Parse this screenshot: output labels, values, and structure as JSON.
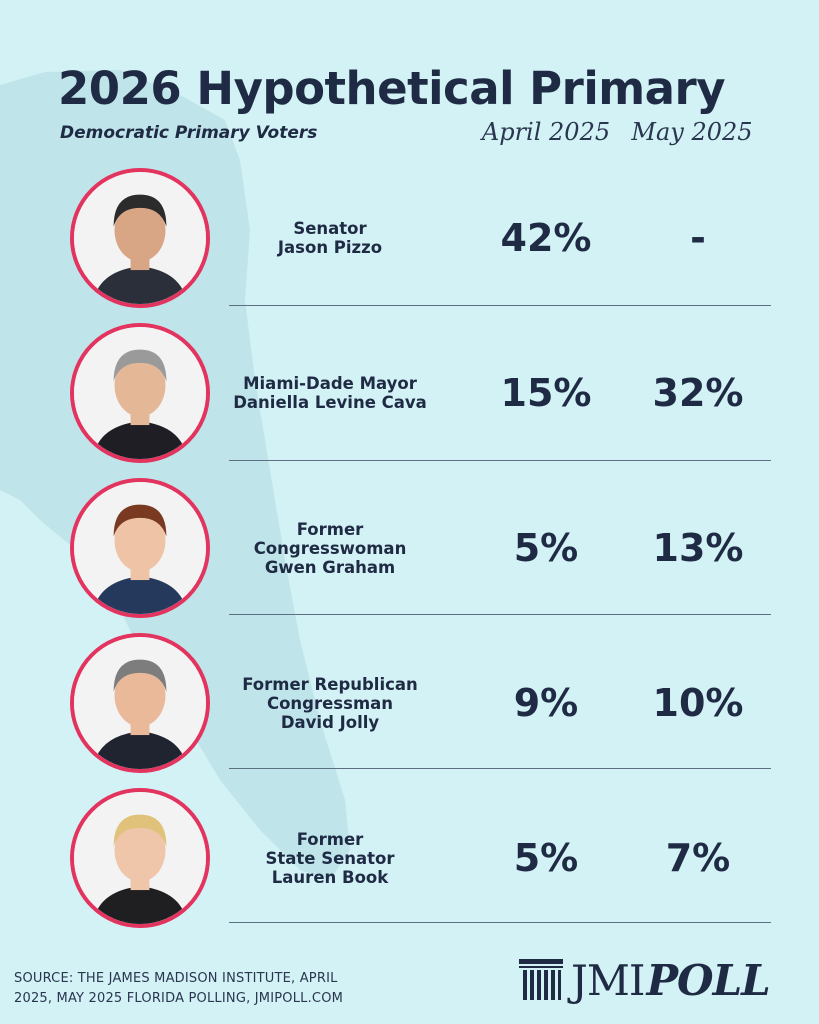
{
  "title": "2026 Hypothetical Primary",
  "subtitle": "Democratic Primary Voters",
  "columns": [
    "April 2025",
    "May 2025"
  ],
  "candidates": [
    {
      "name_lines": [
        "Senator",
        "Jason Pizzo"
      ],
      "april": "42%",
      "may": "-"
    },
    {
      "name_lines": [
        "Miami-Dade Mayor",
        "Daniella Levine Cava"
      ],
      "april": "15%",
      "may": "32%"
    },
    {
      "name_lines": [
        "Former",
        "Congresswoman",
        "Gwen Graham"
      ],
      "april": "5%",
      "may": "13%"
    },
    {
      "name_lines": [
        "Former Republican",
        "Congressman",
        "David Jolly"
      ],
      "april": "9%",
      "may": "10%"
    },
    {
      "name_lines": [
        "Former",
        "State Senator",
        "Lauren Book"
      ],
      "april": "5%",
      "may": "7%"
    }
  ],
  "source_lines": [
    "SOURCE: THE JAMES MADISON INSTITUTE, APRIL",
    "2025, MAY 2025 FLORIDA POLLING, JMIPOLL.COM"
  ],
  "logo": {
    "part1": "JMI",
    "part2": "POLL"
  },
  "icons": {
    "logo_mark": "columns-icon",
    "portrait": "person-portrait-icon"
  },
  "colors": {
    "background": "#d3f2f5",
    "map": "#bfe5ea",
    "text": "#1f2a44",
    "accent_ring": "#e3335f",
    "divider": "#5d6f82"
  },
  "chart_data": {
    "type": "table",
    "title": "2026 Hypothetical Primary",
    "subtitle": "Democratic Primary Voters",
    "series": [
      {
        "name": "April 2025",
        "values": [
          42,
          15,
          5,
          9,
          5
        ]
      },
      {
        "name": "May 2025",
        "values": [
          null,
          32,
          13,
          10,
          7
        ]
      }
    ],
    "categories": [
      "Senator Jason Pizzo",
      "Miami-Dade Mayor Daniella Levine Cava",
      "Former Congresswoman Gwen Graham",
      "Former Republican Congressman David Jolly",
      "Former State Senator Lauren Book"
    ],
    "unit": "%",
    "grid": false
  }
}
